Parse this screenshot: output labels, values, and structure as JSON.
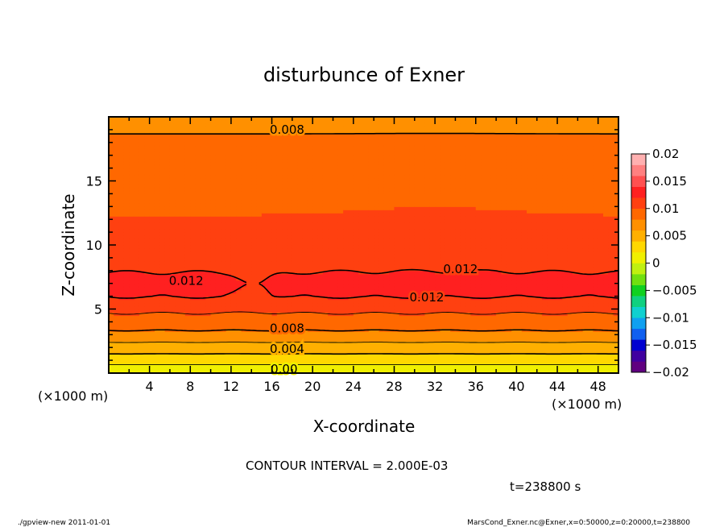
{
  "chart_data": {
    "type": "heatmap",
    "title": "disturbunce of Exner",
    "xlabel": "X-coordinate",
    "ylabel": "Z-coordinate",
    "x_unit": "(×1000 m)",
    "y_unit": "(×1000 m)",
    "xlim": [
      0,
      50
    ],
    "ylim": [
      0,
      20
    ],
    "x_ticks": [
      4,
      8,
      12,
      16,
      20,
      24,
      28,
      32,
      36,
      40,
      44,
      48
    ],
    "y_ticks": [
      5,
      10,
      15
    ],
    "contour_interval_text": "CONTOUR INTERVAL = 2.000E-03",
    "time_text": "t=238800 s",
    "colorbar": {
      "labels": [
        "0.02",
        "0.015",
        "0.01",
        "0.005",
        "0",
        "−0.005",
        "−0.01",
        "−0.015",
        "−0.02"
      ],
      "range": [
        -0.02,
        0.02
      ],
      "colors": [
        "#600080",
        "#4000a0",
        "#0000d0",
        "#1060f0",
        "#10a0f0",
        "#10d0d0",
        "#10d080",
        "#10d020",
        "#70e010",
        "#c0f010",
        "#f0f000",
        "#ffd800",
        "#ffb000",
        "#ff9000",
        "#ff6800",
        "#ff4010",
        "#ff2020",
        "#ff5050",
        "#ff8080",
        "#ffb0b0"
      ]
    },
    "z_profile": {
      "z": [
        0,
        1,
        2,
        3,
        4,
        5,
        6,
        7,
        8,
        9,
        10,
        11,
        12,
        13,
        14,
        15,
        16,
        17,
        18,
        19,
        20
      ],
      "value": [
        0.0,
        0.003,
        0.005,
        0.0075,
        0.009,
        0.0105,
        0.0121,
        0.0126,
        0.0119,
        0.011,
        0.0105,
        0.0103,
        0.0101,
        0.0098,
        0.0094,
        0.0091,
        0.0088,
        0.0085,
        0.0082,
        0.0079,
        0.0077
      ]
    },
    "contour_labels": [
      {
        "text": "0.008",
        "x": 17.5,
        "z": 19.0
      },
      {
        "text": "0.012",
        "x": 7.6,
        "z": 7.2
      },
      {
        "text": "0.012",
        "x": 34.5,
        "z": 8.1
      },
      {
        "text": "0.012",
        "x": 31.2,
        "z": 5.9
      },
      {
        "text": "0.008",
        "x": 17.5,
        "z": 3.5
      },
      {
        "text": "0.004",
        "x": 17.5,
        "z": 1.9
      },
      {
        "text": "0.00",
        "x": 17.2,
        "z": 0.3
      }
    ]
  },
  "footer": {
    "left": "./gpview-new   2011-01-01",
    "right": "MarsCond_Exner.nc@Exner,x=0:50000,z=0:20000,t=238800"
  }
}
